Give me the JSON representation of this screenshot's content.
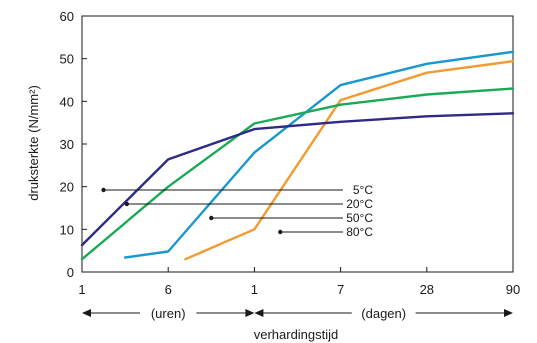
{
  "chart_data": {
    "type": "line",
    "title": "",
    "xlabel": "verhardingstijd",
    "ylabel": "druksterkte (N/mm²)",
    "ylim": [
      0,
      60
    ],
    "y_ticks": [
      0,
      10,
      20,
      30,
      40,
      50,
      60
    ],
    "x_ticks": [
      "1",
      "6",
      "1",
      "7",
      "28",
      "90"
    ],
    "grid": false,
    "time_ranges": [
      {
        "label": "(uren)",
        "from_tick": 0,
        "to_tick": 2
      },
      {
        "label": "(dagen)",
        "from_tick": 2,
        "to_tick": 5
      }
    ],
    "series": [
      {
        "name": "5°C",
        "color": "#2e2a85",
        "points": [
          [
            0.0,
            6.3
          ],
          [
            1.0,
            26.4
          ],
          [
            2.0,
            33.5
          ],
          [
            3.0,
            35.2
          ],
          [
            4.0,
            36.5
          ],
          [
            5.0,
            37.2
          ]
        ],
        "label_anchor": [
          0.25,
          9.2
        ]
      },
      {
        "name": "20°C",
        "color": "#1aaa55",
        "points": [
          [
            0.0,
            3.0
          ],
          [
            1.0,
            20.0
          ],
          [
            2.0,
            34.8
          ],
          [
            3.0,
            39.2
          ],
          [
            4.0,
            41.6
          ],
          [
            5.0,
            43.0
          ]
        ],
        "label_anchor": [
          0.52,
          12.5
        ]
      },
      {
        "name": "50°C",
        "color": "#1a97cf",
        "points": [
          [
            0.5,
            3.4
          ],
          [
            1.0,
            4.8
          ],
          [
            2.0,
            28.0
          ],
          [
            3.0,
            43.8
          ],
          [
            4.0,
            48.8
          ],
          [
            5.0,
            51.6
          ]
        ],
        "label_anchor": [
          1.5,
          15.6
        ]
      },
      {
        "name": "80°C",
        "color": "#f39a32",
        "points": [
          [
            1.2,
            3.0
          ],
          [
            2.0,
            10.0
          ],
          [
            3.0,
            40.3
          ],
          [
            4.0,
            46.7
          ],
          [
            5.0,
            49.4
          ]
        ],
        "label_anchor": [
          2.3,
          18.5
        ]
      }
    ],
    "series_label_order": [
      "80°C",
      "50°C",
      "20°C",
      "5°C"
    ]
  }
}
